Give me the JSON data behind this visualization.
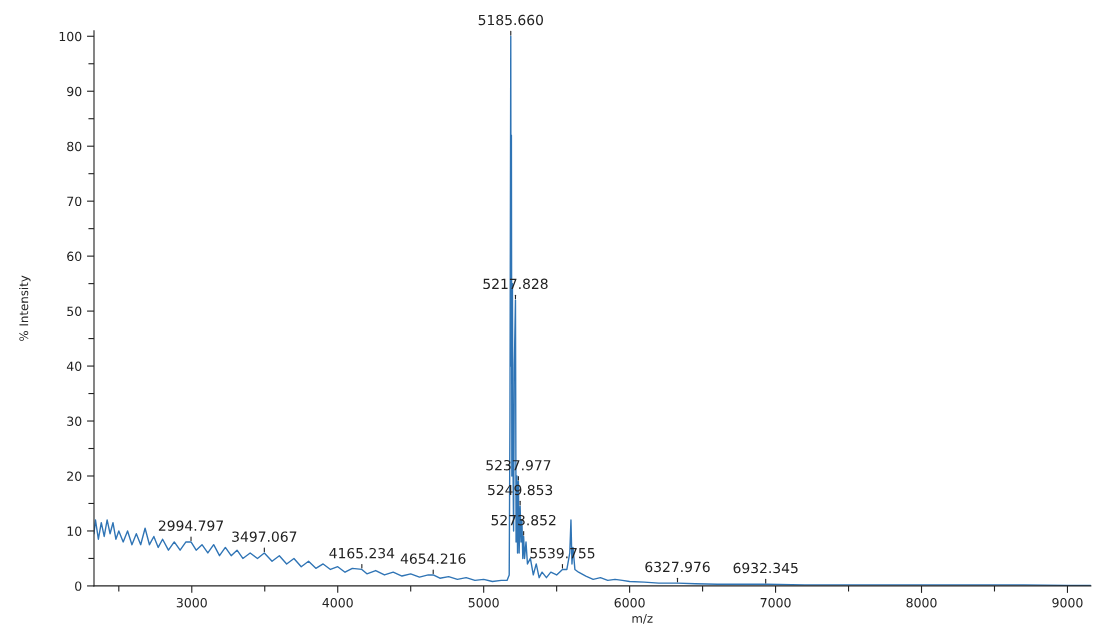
{
  "chart_data": {
    "type": "line",
    "xlabel": "m/z",
    "ylabel": "% Intensity",
    "xlim": [
      2330,
      9160
    ],
    "ylim": [
      0,
      101
    ],
    "xticks": [
      {
        "value": 2500,
        "label": null
      },
      3000,
      {
        "value": 3500,
        "label": null
      },
      4000,
      {
        "value": 4500,
        "label": null
      },
      5000,
      {
        "value": 5500,
        "label": null
      },
      6000,
      {
        "value": 6500,
        "label": null
      },
      7000,
      {
        "value": 7500,
        "label": null
      },
      8000,
      {
        "value": 8500,
        "label": null
      },
      9000
    ],
    "yticks": [
      0,
      {
        "value": 5,
        "label": null
      },
      10,
      {
        "value": 15,
        "label": null
      },
      20,
      {
        "value": 25,
        "label": null
      },
      30,
      {
        "value": 35,
        "label": null
      },
      40,
      {
        "value": 45,
        "label": null
      },
      50,
      {
        "value": 55,
        "label": null
      },
      60,
      {
        "value": 65,
        "label": null
      },
      70,
      {
        "value": 75,
        "label": null
      },
      80,
      {
        "value": 85,
        "label": null
      },
      90,
      {
        "value": 95,
        "label": null
      },
      100
    ],
    "grid": false,
    "legend": false,
    "marker": "none",
    "line_style": "solid",
    "series": [
      {
        "color": "#2f74b5",
        "x": [
          2330,
          2340,
          2360,
          2380,
          2400,
          2420,
          2440,
          2460,
          2480,
          2500,
          2530,
          2560,
          2590,
          2620,
          2650,
          2680,
          2710,
          2740,
          2770,
          2800,
          2840,
          2880,
          2920,
          2960,
          2994.797,
          3030,
          3070,
          3110,
          3150,
          3190,
          3230,
          3270,
          3310,
          3350,
          3400,
          3450,
          3497.067,
          3550,
          3600,
          3650,
          3700,
          3750,
          3800,
          3850,
          3900,
          3950,
          4000,
          4050,
          4100,
          4165.234,
          4200,
          4260,
          4320,
          4380,
          4440,
          4500,
          4560,
          4620,
          4654.216,
          4700,
          4760,
          4820,
          4880,
          4940,
          5000,
          5060,
          5120,
          5160,
          5175,
          5180,
          5185.66,
          5188,
          5190,
          5193,
          5197,
          5200,
          5205,
          5210,
          5217.828,
          5222,
          5228,
          5232,
          5237.977,
          5243,
          5249.853,
          5256,
          5262,
          5268,
          5273.852,
          5280,
          5290,
          5300,
          5320,
          5340,
          5360,
          5380,
          5400,
          5430,
          5460,
          5500,
          5539.755,
          5570,
          5590,
          5598,
          5605,
          5612,
          5625,
          5650,
          5700,
          5750,
          5800,
          5850,
          5900,
          5950,
          6000,
          6100,
          6200,
          6327.976,
          6450,
          6600,
          6800,
          6932.345,
          7200,
          7600,
          8000,
          8400,
          8700,
          9000,
          9160
        ],
        "values": [
          9.5,
          12,
          8.5,
          11.5,
          9,
          12,
          9.5,
          11.5,
          8.5,
          10,
          8,
          10,
          7.5,
          9.5,
          7.5,
          10.5,
          7.5,
          9,
          7,
          8.5,
          6.5,
          8,
          6.5,
          8,
          8,
          6.5,
          7.5,
          6,
          7.5,
          5.5,
          7,
          5.5,
          6.5,
          5,
          6,
          5,
          6,
          4.5,
          5.5,
          4,
          5,
          3.5,
          4.5,
          3.2,
          4,
          3,
          3.5,
          2.5,
          3.2,
          3,
          2.2,
          2.8,
          2,
          2.5,
          1.8,
          2.2,
          1.6,
          2,
          2,
          1.4,
          1.7,
          1.2,
          1.5,
          1,
          1.2,
          0.8,
          1,
          1,
          2,
          30,
          100,
          40,
          82,
          20,
          55,
          25,
          10,
          40,
          52,
          8,
          20,
          6,
          19,
          6,
          14.5,
          8,
          12,
          5,
          9,
          5,
          8,
          4,
          5,
          2,
          4,
          1.5,
          2.5,
          1.5,
          2.5,
          2,
          3,
          3,
          6,
          12,
          4,
          7,
          3,
          2.5,
          1.8,
          1.2,
          1.5,
          1,
          1.2,
          1,
          0.8,
          0.7,
          0.5,
          0.5,
          0.4,
          0.3,
          0.3,
          0.3,
          0.2,
          0.2,
          0.2,
          0.2,
          0.2,
          0.1,
          0.1
        ]
      }
    ],
    "annotations": [
      {
        "text": "2994.797",
        "x": 2994.797,
        "y": 8
      },
      {
        "text": "3497.067",
        "x": 3497.067,
        "y": 6
      },
      {
        "text": "4165.234",
        "x": 4165.234,
        "y": 3
      },
      {
        "text": "4654.216",
        "x": 4654.216,
        "y": 2
      },
      {
        "text": "5185.660",
        "x": 5185.66,
        "y": 100
      },
      {
        "text": "5217.828",
        "x": 5217.828,
        "y": 52
      },
      {
        "text": "5237.977",
        "x": 5237.977,
        "y": 19
      },
      {
        "text": "5249.853",
        "x": 5249.853,
        "y": 14.5
      },
      {
        "text": "5273.852",
        "x": 5273.852,
        "y": 9
      },
      {
        "text": "5539.755",
        "x": 5539.755,
        "y": 3
      },
      {
        "text": "6327.976",
        "x": 6327.976,
        "y": 0.5
      },
      {
        "text": "6932.345",
        "x": 6932.345,
        "y": 0.3
      }
    ]
  }
}
